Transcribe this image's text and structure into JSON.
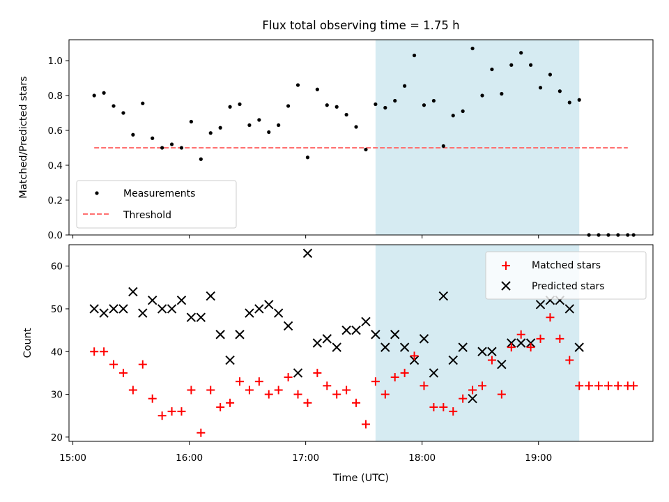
{
  "chart_data": [
    {
      "type": "scatter",
      "title": "Flux total observing time = 1.75 h",
      "xlabel": "",
      "ylabel": "Matched/Predicted stars",
      "xlim": [
        "14:58",
        "19:59"
      ],
      "ylim": [
        0.0,
        1.12
      ],
      "yticks": [
        0.0,
        0.2,
        0.4,
        0.6,
        0.8,
        1.0
      ],
      "ytick_labels": [
        "0.0",
        "0.2",
        "0.4",
        "0.6",
        "0.8",
        "1.0"
      ],
      "shaded_region": {
        "x_from": "17:36",
        "x_to": "19:21",
        "color": "#add8e6"
      },
      "legend": {
        "position": "lower-left",
        "entries": [
          "Measurements",
          "Threshold"
        ]
      },
      "series": [
        {
          "name": "Measurements",
          "marker": "dot",
          "color": "#000000",
          "x": [
            "15:11",
            "15:16",
            "15:21",
            "15:26",
            "15:31",
            "15:36",
            "15:41",
            "15:46",
            "15:51",
            "15:56",
            "16:01",
            "16:06",
            "16:11",
            "16:16",
            "16:21",
            "16:26",
            "16:31",
            "16:36",
            "16:41",
            "16:46",
            "16:51",
            "16:56",
            "17:01",
            "17:06",
            "17:11",
            "17:16",
            "17:21",
            "17:26",
            "17:31",
            "17:36",
            "17:41",
            "17:46",
            "17:51",
            "17:56",
            "18:01",
            "18:06",
            "18:11",
            "18:16",
            "18:21",
            "18:26",
            "18:31",
            "18:36",
            "18:41",
            "18:46",
            "18:51",
            "18:56",
            "19:01",
            "19:06",
            "19:11",
            "19:16",
            "19:21",
            "19:26",
            "19:31",
            "19:36",
            "19:41",
            "19:46",
            "19:49"
          ],
          "y": [
            0.8,
            0.815,
            0.74,
            0.7,
            0.575,
            0.755,
            0.555,
            0.5,
            0.52,
            0.5,
            0.65,
            0.435,
            0.585,
            0.615,
            0.735,
            0.75,
            0.63,
            0.66,
            0.59,
            0.63,
            0.74,
            0.86,
            0.445,
            0.835,
            0.745,
            0.735,
            0.69,
            0.62,
            0.49,
            0.75,
            0.73,
            0.77,
            0.855,
            1.03,
            0.745,
            0.77,
            0.51,
            0.685,
            0.71,
            1.07,
            0.8,
            0.95,
            0.81,
            0.975,
            1.045,
            0.975,
            0.845,
            0.92,
            0.825,
            0.76,
            0.775,
            0.0,
            0.0,
            0.0,
            0.0,
            0.0,
            0.0
          ]
        },
        {
          "name": "Threshold",
          "line_style": "dashed",
          "color": "#ff7070",
          "x": [
            "15:11",
            "19:46"
          ],
          "y": [
            0.5,
            0.5
          ]
        }
      ]
    },
    {
      "type": "scatter",
      "title": "",
      "xlabel": "Time (UTC)",
      "ylabel": "Count",
      "xlim": [
        "14:58",
        "19:59"
      ],
      "ylim": [
        19,
        65
      ],
      "xticks": [
        "15:00",
        "16:00",
        "17:00",
        "18:00",
        "19:00"
      ],
      "yticks": [
        20,
        30,
        40,
        50,
        60
      ],
      "ytick_labels": [
        "20",
        "30",
        "40",
        "50",
        "60"
      ],
      "shaded_region": {
        "x_from": "17:36",
        "x_to": "19:21",
        "color": "#add8e6"
      },
      "legend": {
        "position": "top-right",
        "entries": [
          "Matched stars",
          "Predicted stars"
        ]
      },
      "series": [
        {
          "name": "Matched stars",
          "marker": "plus",
          "color": "#ff0000",
          "x": [
            "15:11",
            "15:16",
            "15:21",
            "15:26",
            "15:31",
            "15:36",
            "15:41",
            "15:46",
            "15:51",
            "15:56",
            "16:01",
            "16:06",
            "16:11",
            "16:16",
            "16:21",
            "16:26",
            "16:31",
            "16:36",
            "16:41",
            "16:46",
            "16:51",
            "16:56",
            "17:01",
            "17:06",
            "17:11",
            "17:16",
            "17:21",
            "17:26",
            "17:31",
            "17:36",
            "17:41",
            "17:46",
            "17:51",
            "17:56",
            "18:01",
            "18:06",
            "18:11",
            "18:16",
            "18:21",
            "18:26",
            "18:31",
            "18:36",
            "18:41",
            "18:46",
            "18:51",
            "18:56",
            "19:01",
            "19:06",
            "19:11",
            "19:16",
            "19:21",
            "19:26",
            "19:31",
            "19:36",
            "19:41",
            "19:46",
            "19:49"
          ],
          "y": [
            40,
            40,
            37,
            35,
            31,
            37,
            29,
            25,
            26,
            26,
            31,
            21,
            31,
            27,
            28,
            33,
            31,
            33,
            30,
            31,
            34,
            30,
            28,
            35,
            32,
            30,
            31,
            28,
            23,
            33,
            30,
            34,
            35,
            39,
            32,
            27,
            27,
            26,
            29,
            31,
            32,
            38,
            30,
            41,
            44,
            41,
            43,
            48,
            43,
            38,
            32,
            32,
            32,
            32,
            32,
            32,
            32
          ]
        },
        {
          "name": "Predicted stars",
          "marker": "x",
          "color": "#000000",
          "x": [
            "15:11",
            "15:16",
            "15:21",
            "15:26",
            "15:31",
            "15:36",
            "15:41",
            "15:46",
            "15:51",
            "15:56",
            "16:01",
            "16:06",
            "16:11",
            "16:16",
            "16:21",
            "16:26",
            "16:31",
            "16:36",
            "16:41",
            "16:46",
            "16:51",
            "16:56",
            "17:01",
            "17:06",
            "17:11",
            "17:16",
            "17:21",
            "17:26",
            "17:31",
            "17:36",
            "17:41",
            "17:46",
            "17:51",
            "17:56",
            "18:01",
            "18:06",
            "18:11",
            "18:16",
            "18:21",
            "18:26",
            "18:31",
            "18:36",
            "18:41",
            "18:46",
            "18:51",
            "18:56",
            "19:01",
            "19:06",
            "19:11",
            "19:16",
            "19:21"
          ],
          "y": [
            50,
            49,
            50,
            50,
            54,
            49,
            52,
            50,
            50,
            52,
            48,
            48,
            53,
            44,
            38,
            44,
            49,
            50,
            51,
            49,
            46,
            35,
            63,
            42,
            43,
            41,
            45,
            45,
            47,
            44,
            41,
            44,
            41,
            38,
            43,
            35,
            53,
            38,
            41,
            29,
            40,
            40,
            37,
            42,
            42,
            42,
            51,
            52,
            52,
            50,
            41
          ]
        }
      ]
    }
  ]
}
